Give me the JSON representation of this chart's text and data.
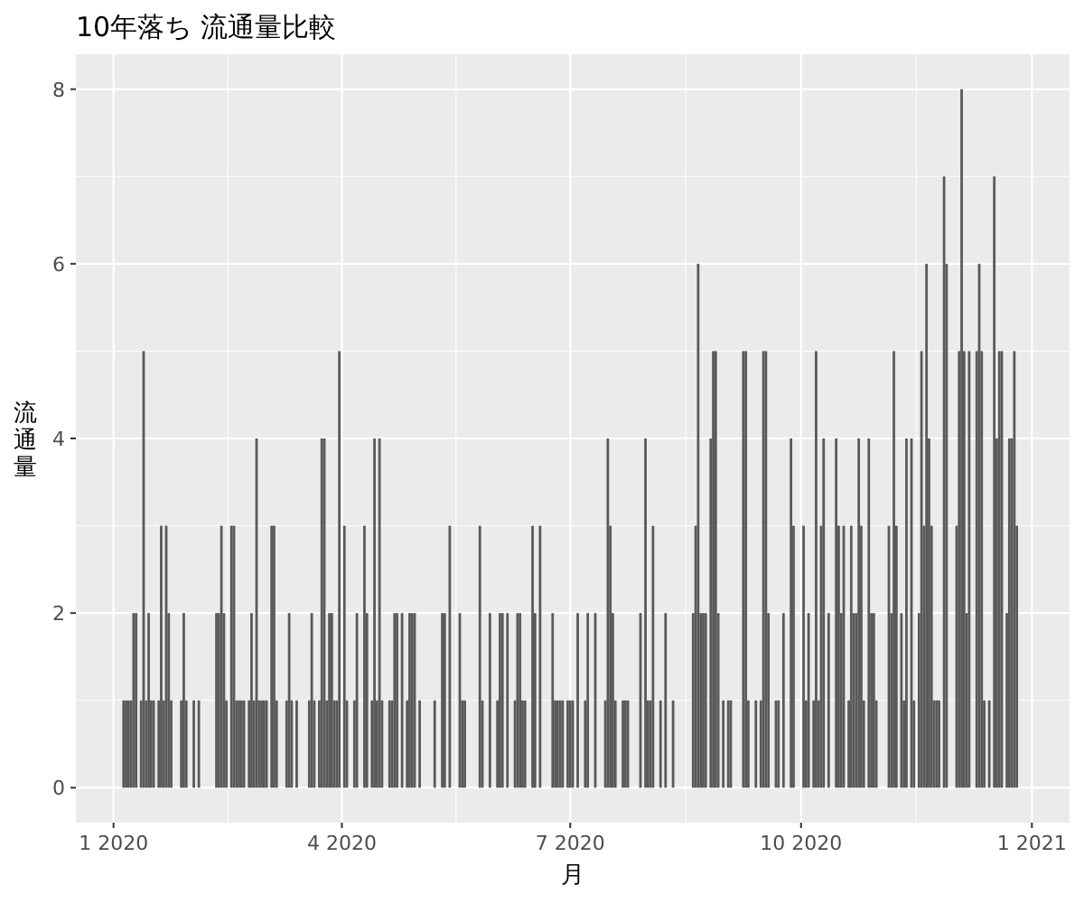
{
  "chart_data": {
    "type": "bar",
    "title": "10年落ち 流通量比較",
    "xlabel": "月",
    "ylabel": "流通量",
    "color": "#595959",
    "grid": true,
    "xlim": [
      "2019-12-17",
      "2021-01-16"
    ],
    "xticks": [
      {
        "value": "2020-01-01",
        "label": "1 2020"
      },
      {
        "value": "2020-04-01",
        "label": "4 2020"
      },
      {
        "value": "2020-07-01",
        "label": "7 2020"
      },
      {
        "value": "2020-10-01",
        "label": "10 2020"
      },
      {
        "value": "2021-01-01",
        "label": "1 2021"
      }
    ],
    "ylim": [
      -0.4,
      8.4
    ],
    "yticks": [
      0,
      2,
      4,
      6,
      8
    ],
    "x": [
      "2020-01-05",
      "2020-01-06",
      "2020-01-07",
      "2020-01-08",
      "2020-01-09",
      "2020-01-10",
      "2020-01-12",
      "2020-01-13",
      "2020-01-14",
      "2020-01-15",
      "2020-01-16",
      "2020-01-17",
      "2020-01-19",
      "2020-01-20",
      "2020-01-21",
      "2020-01-22",
      "2020-01-23",
      "2020-01-24",
      "2020-01-28",
      "2020-01-29",
      "2020-01-30",
      "2020-02-02",
      "2020-02-04",
      "2020-02-11",
      "2020-02-12",
      "2020-02-13",
      "2020-02-14",
      "2020-02-15",
      "2020-02-17",
      "2020-02-18",
      "2020-02-19",
      "2020-02-20",
      "2020-02-21",
      "2020-02-22",
      "2020-02-24",
      "2020-02-25",
      "2020-02-26",
      "2020-02-27",
      "2020-02-28",
      "2020-02-29",
      "2020-03-01",
      "2020-03-02",
      "2020-03-04",
      "2020-03-05",
      "2020-03-06",
      "2020-03-10",
      "2020-03-11",
      "2020-03-12",
      "2020-03-14",
      "2020-03-19",
      "2020-03-20",
      "2020-03-21",
      "2020-03-23",
      "2020-03-24",
      "2020-03-25",
      "2020-03-26",
      "2020-03-27",
      "2020-03-28",
      "2020-03-29",
      "2020-03-30",
      "2020-03-31",
      "2020-04-02",
      "2020-04-03",
      "2020-04-06",
      "2020-04-07",
      "2020-04-10",
      "2020-04-11",
      "2020-04-13",
      "2020-04-14",
      "2020-04-15",
      "2020-04-16",
      "2020-04-17",
      "2020-04-20",
      "2020-04-21",
      "2020-04-22",
      "2020-04-23",
      "2020-04-25",
      "2020-04-27",
      "2020-04-28",
      "2020-04-29",
      "2020-04-30",
      "2020-05-02",
      "2020-05-08",
      "2020-05-11",
      "2020-05-12",
      "2020-05-14",
      "2020-05-18",
      "2020-05-19",
      "2020-05-20",
      "2020-05-26",
      "2020-05-27",
      "2020-05-30",
      "2020-06-02",
      "2020-06-03",
      "2020-06-04",
      "2020-06-06",
      "2020-06-09",
      "2020-06-10",
      "2020-06-11",
      "2020-06-12",
      "2020-06-13",
      "2020-06-16",
      "2020-06-17",
      "2020-06-19",
      "2020-06-24",
      "2020-06-25",
      "2020-06-26",
      "2020-06-27",
      "2020-06-28",
      "2020-06-30",
      "2020-07-01",
      "2020-07-02",
      "2020-07-04",
      "2020-07-07",
      "2020-07-08",
      "2020-07-11",
      "2020-07-15",
      "2020-07-16",
      "2020-07-17",
      "2020-07-18",
      "2020-07-19",
      "2020-07-22",
      "2020-07-23",
      "2020-07-24",
      "2020-07-29",
      "2020-07-31",
      "2020-08-01",
      "2020-08-02",
      "2020-08-03",
      "2020-08-06",
      "2020-08-08",
      "2020-08-11",
      "2020-08-19",
      "2020-08-20",
      "2020-08-21",
      "2020-08-22",
      "2020-08-23",
      "2020-08-24",
      "2020-08-26",
      "2020-08-27",
      "2020-08-28",
      "2020-08-29",
      "2020-08-31",
      "2020-09-02",
      "2020-09-03",
      "2020-09-08",
      "2020-09-09",
      "2020-09-10",
      "2020-09-13",
      "2020-09-15",
      "2020-09-16",
      "2020-09-17",
      "2020-09-18",
      "2020-09-21",
      "2020-09-22",
      "2020-09-24",
      "2020-09-27",
      "2020-09-28",
      "2020-10-02",
      "2020-10-03",
      "2020-10-04",
      "2020-10-06",
      "2020-10-07",
      "2020-10-08",
      "2020-10-09",
      "2020-10-10",
      "2020-10-12",
      "2020-10-15",
      "2020-10-16",
      "2020-10-17",
      "2020-10-18",
      "2020-10-20",
      "2020-10-21",
      "2020-10-22",
      "2020-10-23",
      "2020-10-24",
      "2020-10-25",
      "2020-10-26",
      "2020-10-28",
      "2020-10-29",
      "2020-10-30",
      "2020-10-31",
      "2020-11-05",
      "2020-11-06",
      "2020-11-07",
      "2020-11-08",
      "2020-11-10",
      "2020-11-11",
      "2020-11-12",
      "2020-11-14",
      "2020-11-15",
      "2020-11-17",
      "2020-11-18",
      "2020-11-19",
      "2020-11-20",
      "2020-11-21",
      "2020-11-22",
      "2020-11-23",
      "2020-11-24",
      "2020-11-25",
      "2020-11-27",
      "2020-11-28",
      "2020-12-02",
      "2020-12-03",
      "2020-12-04",
      "2020-12-05",
      "2020-12-06",
      "2020-12-07",
      "2020-12-10",
      "2020-12-11",
      "2020-12-12",
      "2020-12-13",
      "2020-12-15",
      "2020-12-17",
      "2020-12-18",
      "2020-12-19",
      "2020-12-20",
      "2020-12-22",
      "2020-12-23",
      "2020-12-24",
      "2020-12-25",
      "2020-12-26"
    ],
    "values": [
      1,
      1,
      1,
      1,
      2,
      2,
      1,
      5,
      1,
      2,
      1,
      1,
      1,
      3,
      1,
      3,
      2,
      1,
      1,
      2,
      1,
      1,
      1,
      2,
      2,
      3,
      2,
      1,
      3,
      3,
      1,
      1,
      1,
      1,
      1,
      2,
      1,
      4,
      1,
      1,
      1,
      1,
      3,
      3,
      1,
      1,
      2,
      1,
      1,
      1,
      2,
      1,
      1,
      4,
      4,
      1,
      2,
      2,
      1,
      1,
      5,
      3,
      1,
      1,
      2,
      3,
      2,
      1,
      4,
      1,
      4,
      1,
      1,
      1,
      2,
      2,
      2,
      1,
      2,
      2,
      2,
      1,
      1,
      2,
      2,
      3,
      2,
      1,
      1,
      3,
      1,
      2,
      1,
      2,
      2,
      2,
      1,
      2,
      2,
      1,
      1,
      3,
      2,
      3,
      2,
      1,
      1,
      1,
      1,
      1,
      1,
      1,
      2,
      1,
      2,
      2,
      1,
      4,
      3,
      2,
      1,
      1,
      1,
      1,
      2,
      4,
      1,
      1,
      3,
      1,
      2,
      1,
      2,
      3,
      6,
      2,
      2,
      2,
      4,
      5,
      5,
      2,
      1,
      1,
      1,
      5,
      5,
      1,
      1,
      1,
      5,
      5,
      2,
      1,
      1,
      2,
      4,
      3,
      3,
      1,
      2,
      1,
      5,
      1,
      3,
      4,
      2,
      4,
      3,
      2,
      3,
      1,
      3,
      2,
      2,
      4,
      3,
      1,
      4,
      2,
      2,
      1,
      3,
      2,
      5,
      3,
      2,
      1,
      4,
      4,
      1,
      2,
      5,
      3,
      6,
      4,
      3,
      1,
      1,
      1,
      7,
      6,
      3,
      5,
      8,
      5,
      2,
      5,
      5,
      6,
      5,
      1,
      1,
      7,
      4,
      5,
      5,
      2,
      4,
      4,
      5,
      3
    ]
  }
}
